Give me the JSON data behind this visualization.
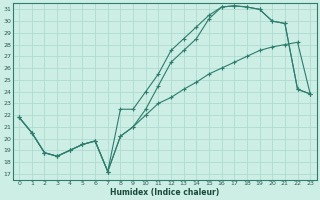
{
  "xlabel": "Humidex (Indice chaleur)",
  "bg_color": "#cceee4",
  "line_color": "#2e7d6e",
  "grid_color": "#aad8cc",
  "xlim": [
    -0.5,
    23.5
  ],
  "ylim": [
    16.5,
    31.5
  ],
  "xticks": [
    0,
    1,
    2,
    3,
    4,
    5,
    6,
    7,
    8,
    9,
    10,
    11,
    12,
    13,
    14,
    15,
    16,
    17,
    18,
    19,
    20,
    21,
    22,
    23
  ],
  "yticks": [
    17,
    18,
    19,
    20,
    21,
    22,
    23,
    24,
    25,
    26,
    27,
    28,
    29,
    30,
    31
  ],
  "line1_x": [
    0,
    1,
    2,
    3,
    4,
    5,
    6,
    7,
    8,
    9,
    10,
    11,
    12,
    13,
    14,
    15,
    16,
    17,
    18,
    19,
    20,
    21,
    22,
    23
  ],
  "line1_y": [
    21.8,
    20.5,
    18.8,
    18.5,
    19.0,
    19.5,
    19.8,
    17.2,
    20.2,
    21.0,
    22.5,
    24.5,
    26.5,
    27.5,
    28.5,
    30.2,
    31.2,
    31.3,
    31.2,
    31.0,
    30.0,
    29.8,
    24.2,
    23.8
  ],
  "line2_x": [
    0,
    1,
    2,
    3,
    4,
    5,
    6,
    7,
    8,
    9,
    10,
    11,
    12,
    13,
    14,
    15,
    16,
    17,
    18,
    19,
    20,
    21,
    22,
    23
  ],
  "line2_y": [
    21.8,
    20.5,
    18.8,
    18.5,
    19.0,
    19.5,
    19.8,
    17.2,
    22.5,
    22.5,
    24.0,
    25.5,
    27.5,
    28.5,
    29.5,
    30.5,
    31.2,
    31.3,
    31.2,
    31.0,
    30.0,
    29.8,
    24.2,
    23.8
  ],
  "line3_x": [
    0,
    1,
    2,
    3,
    4,
    5,
    6,
    7,
    8,
    9,
    10,
    11,
    12,
    13,
    14,
    15,
    16,
    17,
    18,
    19,
    20,
    21,
    22,
    23
  ],
  "line3_y": [
    21.8,
    20.5,
    18.8,
    18.5,
    19.0,
    19.5,
    19.8,
    17.2,
    20.2,
    21.0,
    22.0,
    23.0,
    23.5,
    24.2,
    24.8,
    25.5,
    26.0,
    26.5,
    27.0,
    27.5,
    27.8,
    28.0,
    28.2,
    23.8
  ]
}
